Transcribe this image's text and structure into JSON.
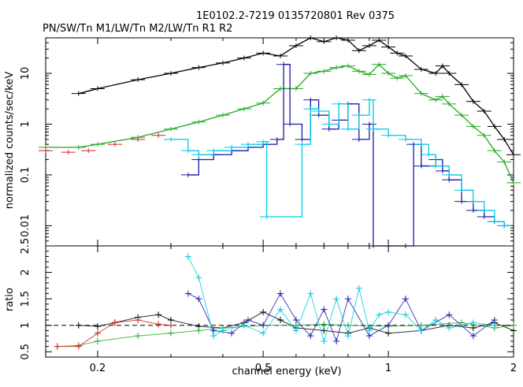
{
  "chart_data": [
    {
      "type": "line",
      "panel": "spectrum",
      "title": "1E0102.2-7219 0135720801 Rev 0375",
      "subtitle": "PN/SW/Tn M1/LW/Tn M2/LW/Tn R1 R2",
      "xlabel": "",
      "ylabel": "normalized counts/sec/keV",
      "xscale": "log",
      "yscale": "log",
      "xlim": [
        0.15,
        2.0
      ],
      "ylim": [
        0.004,
        50
      ],
      "xticks": [],
      "yticks": [
        "0.01",
        "0.1",
        "1",
        "10"
      ],
      "grid": false,
      "series": [
        {
          "color": "#000000",
          "style": "crosses-with-model",
          "x": [
            0.18,
            0.2,
            0.25,
            0.3,
            0.35,
            0.4,
            0.45,
            0.5,
            0.55,
            0.6,
            0.65,
            0.7,
            0.75,
            0.8,
            0.85,
            0.9,
            0.95,
            1.0,
            1.05,
            1.1,
            1.2,
            1.3,
            1.35,
            1.4,
            1.5,
            1.6,
            1.7,
            1.8,
            1.9,
            2.0
          ],
          "y": [
            4.0,
            5.0,
            7.5,
            10,
            13,
            16,
            20,
            25,
            22,
            35,
            50,
            42,
            50,
            45,
            28,
            35,
            45,
            33,
            25,
            22,
            12,
            10,
            14,
            10,
            6.0,
            2.8,
            1.8,
            0.9,
            0.5,
            0.25
          ]
        },
        {
          "color": "#22aa22",
          "style": "crosses-with-model",
          "x": [
            0.15,
            0.18,
            0.2,
            0.25,
            0.3,
            0.35,
            0.4,
            0.45,
            0.5,
            0.55,
            0.6,
            0.65,
            0.7,
            0.75,
            0.8,
            0.85,
            0.9,
            0.95,
            1.0,
            1.05,
            1.1,
            1.2,
            1.3,
            1.35,
            1.4,
            1.5,
            1.6,
            1.7,
            1.8,
            1.9,
            2.0
          ],
          "y": [
            0.35,
            0.35,
            0.4,
            0.55,
            0.8,
            1.1,
            1.5,
            2.0,
            2.6,
            5.0,
            5.0,
            10,
            11,
            13,
            14,
            11,
            9.5,
            15,
            10,
            8.0,
            9.0,
            4.0,
            3.0,
            3.5,
            2.5,
            1.5,
            0.9,
            0.6,
            0.3,
            0.18,
            0.07
          ]
        },
        {
          "color": "#cc2222",
          "style": "crosses",
          "x": [
            0.15,
            0.17,
            0.19,
            0.22,
            0.25,
            0.28
          ],
          "y": [
            0.3,
            0.28,
            0.3,
            0.4,
            0.5,
            0.6
          ]
        },
        {
          "color": "#1a1aaa",
          "style": "step-with-crosses",
          "x": [
            0.33,
            0.35,
            0.38,
            0.42,
            0.46,
            0.5,
            0.54,
            0.56,
            0.58,
            0.62,
            0.65,
            0.68,
            0.72,
            0.76,
            0.8,
            0.85,
            0.9,
            0.92,
            1.0,
            1.1,
            1.15,
            1.2,
            1.3,
            1.35,
            1.4,
            1.5,
            1.6,
            1.7,
            1.8,
            1.9
          ],
          "y": [
            0.1,
            0.2,
            0.25,
            0.3,
            0.35,
            0.4,
            0.5,
            15,
            1.0,
            0.5,
            3.0,
            1.5,
            0.8,
            1.2,
            2.5,
            0.5,
            1.0,
            0.004,
            0.004,
            0.004,
            0.4,
            0.15,
            0.2,
            0.12,
            0.08,
            0.03,
            0.02,
            0.015,
            0.012,
            0.01
          ]
        },
        {
          "color": "#00c8e6",
          "style": "step-with-crosses",
          "x": [
            0.3,
            0.33,
            0.35,
            0.38,
            0.42,
            0.46,
            0.5,
            0.51,
            0.62,
            0.65,
            0.68,
            0.72,
            0.76,
            0.8,
            0.85,
            0.9,
            0.92,
            1.0,
            1.1,
            1.2,
            1.25,
            1.3,
            1.4,
            1.5,
            1.6,
            1.7,
            1.8,
            1.9
          ],
          "y": [
            0.5,
            0.3,
            0.25,
            0.3,
            0.35,
            0.4,
            0.45,
            0.015,
            0.4,
            2.0,
            1.8,
            1.0,
            2.5,
            0.8,
            1.5,
            3.0,
            0.8,
            0.6,
            0.5,
            0.4,
            0.25,
            0.15,
            0.1,
            0.05,
            0.03,
            0.02,
            0.012,
            0.01
          ]
        }
      ]
    },
    {
      "type": "scatter",
      "panel": "ratio",
      "title": "",
      "xlabel": "channel energy (keV)",
      "ylabel": "ratio",
      "xscale": "log",
      "xlim": [
        0.15,
        2.0
      ],
      "ylim": [
        0.4,
        2.5
      ],
      "xticks": [
        "0.2",
        "0.5",
        "1",
        "2"
      ],
      "yticks": [
        "0.5",
        "1",
        "1.5",
        "2",
        "2.5"
      ],
      "reference_line": 1,
      "grid": false,
      "series": [
        {
          "color": "#000000",
          "x": [
            0.18,
            0.2,
            0.22,
            0.25,
            0.28,
            0.3,
            0.35,
            0.4,
            0.45,
            0.5,
            0.55,
            0.6,
            0.7,
            0.8,
            0.9,
            1.0,
            1.2,
            1.4,
            1.6,
            1.8,
            2.0
          ],
          "y": [
            1.0,
            0.98,
            1.05,
            1.15,
            1.2,
            1.1,
            0.98,
            0.95,
            1.05,
            1.25,
            1.1,
            0.95,
            0.9,
            0.85,
            0.95,
            0.85,
            0.9,
            1.0,
            0.95,
            1.05,
            0.9
          ]
        },
        {
          "color": "#22aa22",
          "x": [
            0.16,
            0.18,
            0.2,
            0.25,
            0.3,
            0.35,
            0.4,
            0.5,
            0.6,
            0.7,
            0.8,
            1.0,
            1.2,
            1.5,
            1.8,
            2.0
          ],
          "y": [
            0.6,
            0.62,
            0.7,
            0.8,
            0.85,
            0.9,
            0.95,
            1.0,
            1.0,
            1.02,
            1.0,
            0.98,
            1.0,
            1.05,
            0.95,
            1.0
          ]
        },
        {
          "color": "#cc2222",
          "x": [
            0.16,
            0.18,
            0.2,
            0.22,
            0.25,
            0.28,
            0.3
          ],
          "y": [
            0.6,
            0.6,
            0.85,
            1.05,
            1.1,
            1.02,
            1.0
          ]
        },
        {
          "color": "#1a1aaa",
          "x": [
            0.33,
            0.35,
            0.38,
            0.42,
            0.46,
            0.5,
            0.55,
            0.6,
            0.65,
            0.7,
            0.75,
            0.8,
            0.9,
            1.0,
            1.1,
            1.2,
            1.4,
            1.6,
            1.8
          ],
          "y": [
            1.6,
            1.5,
            0.9,
            0.85,
            1.1,
            1.0,
            1.6,
            1.1,
            0.8,
            1.3,
            0.7,
            1.5,
            0.8,
            1.0,
            1.5,
            0.9,
            1.2,
            0.8,
            1.1
          ]
        },
        {
          "color": "#00c8e6",
          "x": [
            0.33,
            0.35,
            0.38,
            0.4,
            0.45,
            0.5,
            0.55,
            0.6,
            0.65,
            0.7,
            0.75,
            0.8,
            0.85,
            0.9,
            0.95,
            1.0,
            1.1,
            1.2,
            1.3,
            1.4,
            1.6,
            1.8
          ],
          "y": [
            2.3,
            1.9,
            0.8,
            0.9,
            1.0,
            0.85,
            1.3,
            0.9,
            1.6,
            0.7,
            1.5,
            0.8,
            1.7,
            0.9,
            1.2,
            1.25,
            1.2,
            0.9,
            1.1,
            0.95,
            1.05,
            1.0
          ]
        }
      ]
    }
  ]
}
